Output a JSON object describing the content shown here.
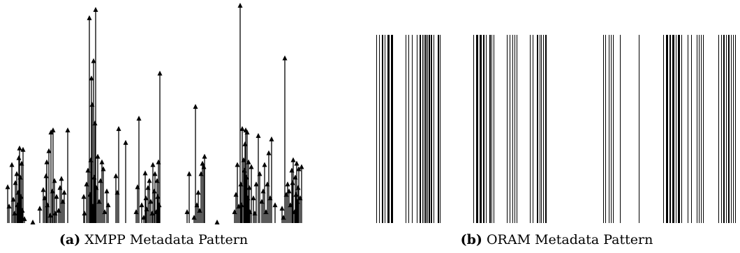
{
  "chart_data": [
    {
      "type": "event-arrows",
      "caption_label": "(a)",
      "caption_text": "XMPP Metadata Pattern",
      "ylim": [
        0,
        320
      ],
      "xlim": [
        0,
        440
      ],
      "events": [
        {
          "x": 11,
          "y": 56
        },
        {
          "x": 13,
          "y": 28
        },
        {
          "x": 17,
          "y": 88
        },
        {
          "x": 19,
          "y": 38
        },
        {
          "x": 21,
          "y": 18
        },
        {
          "x": 22,
          "y": 62
        },
        {
          "x": 24,
          "y": 75
        },
        {
          "x": 25,
          "y": 30
        },
        {
          "x": 26,
          "y": 48
        },
        {
          "x": 27,
          "y": 98
        },
        {
          "x": 28,
          "y": 112
        },
        {
          "x": 29,
          "y": 70
        },
        {
          "x": 30,
          "y": 42
        },
        {
          "x": 31,
          "y": 90
        },
        {
          "x": 32,
          "y": 22
        },
        {
          "x": 33,
          "y": 110
        },
        {
          "x": 35,
          "y": 10
        },
        {
          "x": 47,
          "y": 5
        },
        {
          "x": 57,
          "y": 25
        },
        {
          "x": 62,
          "y": 52
        },
        {
          "x": 64,
          "y": 40
        },
        {
          "x": 66,
          "y": 72
        },
        {
          "x": 67,
          "y": 92
        },
        {
          "x": 68,
          "y": 30
        },
        {
          "x": 70,
          "y": 108
        },
        {
          "x": 72,
          "y": 15
        },
        {
          "x": 73,
          "y": 135
        },
        {
          "x": 75,
          "y": 50
        },
        {
          "x": 76,
          "y": 138
        },
        {
          "x": 78,
          "y": 65
        },
        {
          "x": 79,
          "y": 18
        },
        {
          "x": 81,
          "y": 42
        },
        {
          "x": 84,
          "y": 22
        },
        {
          "x": 86,
          "y": 55
        },
        {
          "x": 88,
          "y": 68
        },
        {
          "x": 90,
          "y": 35
        },
        {
          "x": 92,
          "y": 48
        },
        {
          "x": 97,
          "y": 138
        },
        {
          "x": 120,
          "y": 42
        },
        {
          "x": 121,
          "y": 18
        },
        {
          "x": 124,
          "y": 60
        },
        {
          "x": 126,
          "y": 80
        },
        {
          "x": 128,
          "y": 300
        },
        {
          "x": 129,
          "y": 45
        },
        {
          "x": 130,
          "y": 95
        },
        {
          "x": 131,
          "y": 213
        },
        {
          "x": 132,
          "y": 175
        },
        {
          "x": 133,
          "y": 28
        },
        {
          "x": 134,
          "y": 238
        },
        {
          "x": 135,
          "y": 70
        },
        {
          "x": 136,
          "y": 148
        },
        {
          "x": 137,
          "y": 312
        },
        {
          "x": 138,
          "y": 55
        },
        {
          "x": 140,
          "y": 100
        },
        {
          "x": 142,
          "y": 35
        },
        {
          "x": 144,
          "y": 65
        },
        {
          "x": 146,
          "y": 92
        },
        {
          "x": 148,
          "y": 82
        },
        {
          "x": 150,
          "y": 20
        },
        {
          "x": 153,
          "y": 50
        },
        {
          "x": 155,
          "y": 30
        },
        {
          "x": 166,
          "y": 72
        },
        {
          "x": 168,
          "y": 48
        },
        {
          "x": 170,
          "y": 140
        },
        {
          "x": 180,
          "y": 120
        },
        {
          "x": 195,
          "y": 20
        },
        {
          "x": 197,
          "y": 56
        },
        {
          "x": 199,
          "y": 155
        },
        {
          "x": 203,
          "y": 30
        },
        {
          "x": 206,
          "y": 12
        },
        {
          "x": 208,
          "y": 76
        },
        {
          "x": 209,
          "y": 40
        },
        {
          "x": 210,
          "y": 24
        },
        {
          "x": 212,
          "y": 55
        },
        {
          "x": 214,
          "y": 65
        },
        {
          "x": 216,
          "y": 35
        },
        {
          "x": 218,
          "y": 18
        },
        {
          "x": 219,
          "y": 88
        },
        {
          "x": 221,
          "y": 50
        },
        {
          "x": 222,
          "y": 75
        },
        {
          "x": 224,
          "y": 20
        },
        {
          "x": 225,
          "y": 65
        },
        {
          "x": 226,
          "y": 42
        },
        {
          "x": 227,
          "y": 92
        },
        {
          "x": 228,
          "y": 30
        },
        {
          "x": 229,
          "y": 220
        },
        {
          "x": 268,
          "y": 20
        },
        {
          "x": 271,
          "y": 75
        },
        {
          "x": 278,
          "y": 12
        },
        {
          "x": 280,
          "y": 172
        },
        {
          "x": 282,
          "y": 30
        },
        {
          "x": 284,
          "y": 48
        },
        {
          "x": 286,
          "y": 22
        },
        {
          "x": 288,
          "y": 75
        },
        {
          "x": 290,
          "y": 90
        },
        {
          "x": 292,
          "y": 85
        },
        {
          "x": 293,
          "y": 100
        },
        {
          "x": 311,
          "y": 5
        },
        {
          "x": 336,
          "y": 20
        },
        {
          "x": 338,
          "y": 45
        },
        {
          "x": 340,
          "y": 88
        },
        {
          "x": 342,
          "y": 28
        },
        {
          "x": 344,
          "y": 318
        },
        {
          "x": 345,
          "y": 60
        },
        {
          "x": 346,
          "y": 30
        },
        {
          "x": 347,
          "y": 140
        },
        {
          "x": 349,
          "y": 95
        },
        {
          "x": 350,
          "y": 80
        },
        {
          "x": 351,
          "y": 118
        },
        {
          "x": 352,
          "y": 138
        },
        {
          "x": 353,
          "y": 70
        },
        {
          "x": 354,
          "y": 135
        },
        {
          "x": 355,
          "y": 40
        },
        {
          "x": 356,
          "y": 92
        },
        {
          "x": 357,
          "y": 55
        },
        {
          "x": 358,
          "y": 20
        },
        {
          "x": 360,
          "y": 85
        },
        {
          "x": 363,
          "y": 40
        },
        {
          "x": 365,
          "y": 18
        },
        {
          "x": 367,
          "y": 60
        },
        {
          "x": 370,
          "y": 130
        },
        {
          "x": 372,
          "y": 75
        },
        {
          "x": 375,
          "y": 35
        },
        {
          "x": 377,
          "y": 50
        },
        {
          "x": 379,
          "y": 88
        },
        {
          "x": 381,
          "y": 20
        },
        {
          "x": 383,
          "y": 60
        },
        {
          "x": 385,
          "y": 105
        },
        {
          "x": 387,
          "y": 40
        },
        {
          "x": 389,
          "y": 125
        },
        {
          "x": 394,
          "y": 30
        },
        {
          "x": 404,
          "y": 25
        },
        {
          "x": 406,
          "y": 12
        },
        {
          "x": 408,
          "y": 242
        },
        {
          "x": 410,
          "y": 45
        },
        {
          "x": 412,
          "y": 60
        },
        {
          "x": 414,
          "y": 50
        },
        {
          "x": 416,
          "y": 30
        },
        {
          "x": 418,
          "y": 80
        },
        {
          "x": 419,
          "y": 62
        },
        {
          "x": 420,
          "y": 95
        },
        {
          "x": 422,
          "y": 20
        },
        {
          "x": 423,
          "y": 70
        },
        {
          "x": 424,
          "y": 45
        },
        {
          "x": 425,
          "y": 90
        },
        {
          "x": 426,
          "y": 35
        },
        {
          "x": 427,
          "y": 55
        },
        {
          "x": 428,
          "y": 82
        },
        {
          "x": 430,
          "y": 40
        },
        {
          "x": 432,
          "y": 85
        }
      ]
    },
    {
      "type": "barcode",
      "caption_label": "(b)",
      "caption_text": "ORAM Metadata Pattern",
      "xlim": [
        0,
        525
      ],
      "events": [
        {
          "x": 4,
          "w": 1
        },
        {
          "x": 8,
          "w": 1
        },
        {
          "x": 12,
          "w": 2
        },
        {
          "x": 16,
          "w": 1
        },
        {
          "x": 20,
          "w": 3
        },
        {
          "x": 25,
          "w": 3
        },
        {
          "x": 46,
          "w": 1
        },
        {
          "x": 50,
          "w": 1
        },
        {
          "x": 55,
          "w": 1
        },
        {
          "x": 62,
          "w": 1
        },
        {
          "x": 66,
          "w": 2
        },
        {
          "x": 70,
          "w": 1
        },
        {
          "x": 72,
          "w": 1
        },
        {
          "x": 74,
          "w": 2
        },
        {
          "x": 77,
          "w": 1
        },
        {
          "x": 79,
          "w": 2
        },
        {
          "x": 82,
          "w": 2
        },
        {
          "x": 86,
          "w": 1
        },
        {
          "x": 92,
          "w": 2
        },
        {
          "x": 95,
          "w": 1
        },
        {
          "x": 143,
          "w": 1
        },
        {
          "x": 147,
          "w": 3
        },
        {
          "x": 152,
          "w": 3
        },
        {
          "x": 157,
          "w": 2
        },
        {
          "x": 161,
          "w": 1
        },
        {
          "x": 166,
          "w": 2
        },
        {
          "x": 169,
          "w": 1
        },
        {
          "x": 172,
          "w": 1
        },
        {
          "x": 191,
          "w": 1
        },
        {
          "x": 195,
          "w": 1
        },
        {
          "x": 199,
          "w": 1
        },
        {
          "x": 202,
          "w": 1
        },
        {
          "x": 205,
          "w": 1
        },
        {
          "x": 224,
          "w": 1
        },
        {
          "x": 228,
          "w": 1
        },
        {
          "x": 234,
          "w": 2
        },
        {
          "x": 238,
          "w": 1
        },
        {
          "x": 240,
          "w": 1
        },
        {
          "x": 243,
          "w": 1
        },
        {
          "x": 246,
          "w": 2
        },
        {
          "x": 329,
          "w": 1
        },
        {
          "x": 332,
          "w": 1
        },
        {
          "x": 337,
          "w": 1
        },
        {
          "x": 340,
          "w": 1
        },
        {
          "x": 343,
          "w": 1
        },
        {
          "x": 353,
          "w": 1
        },
        {
          "x": 380,
          "w": 1
        },
        {
          "x": 415,
          "w": 1
        },
        {
          "x": 419,
          "w": 3
        },
        {
          "x": 424,
          "w": 2
        },
        {
          "x": 428,
          "w": 3
        },
        {
          "x": 433,
          "w": 1
        },
        {
          "x": 436,
          "w": 3
        },
        {
          "x": 441,
          "w": 1
        },
        {
          "x": 450,
          "w": 1
        },
        {
          "x": 455,
          "w": 1
        },
        {
          "x": 463,
          "w": 1
        },
        {
          "x": 466,
          "w": 1
        },
        {
          "x": 469,
          "w": 1
        },
        {
          "x": 472,
          "w": 1
        },
        {
          "x": 494,
          "w": 1
        },
        {
          "x": 498,
          "w": 1
        },
        {
          "x": 501,
          "w": 2
        },
        {
          "x": 505,
          "w": 1
        },
        {
          "x": 508,
          "w": 2
        },
        {
          "x": 512,
          "w": 1
        },
        {
          "x": 515,
          "w": 1
        },
        {
          "x": 518,
          "w": 1
        }
      ]
    }
  ]
}
